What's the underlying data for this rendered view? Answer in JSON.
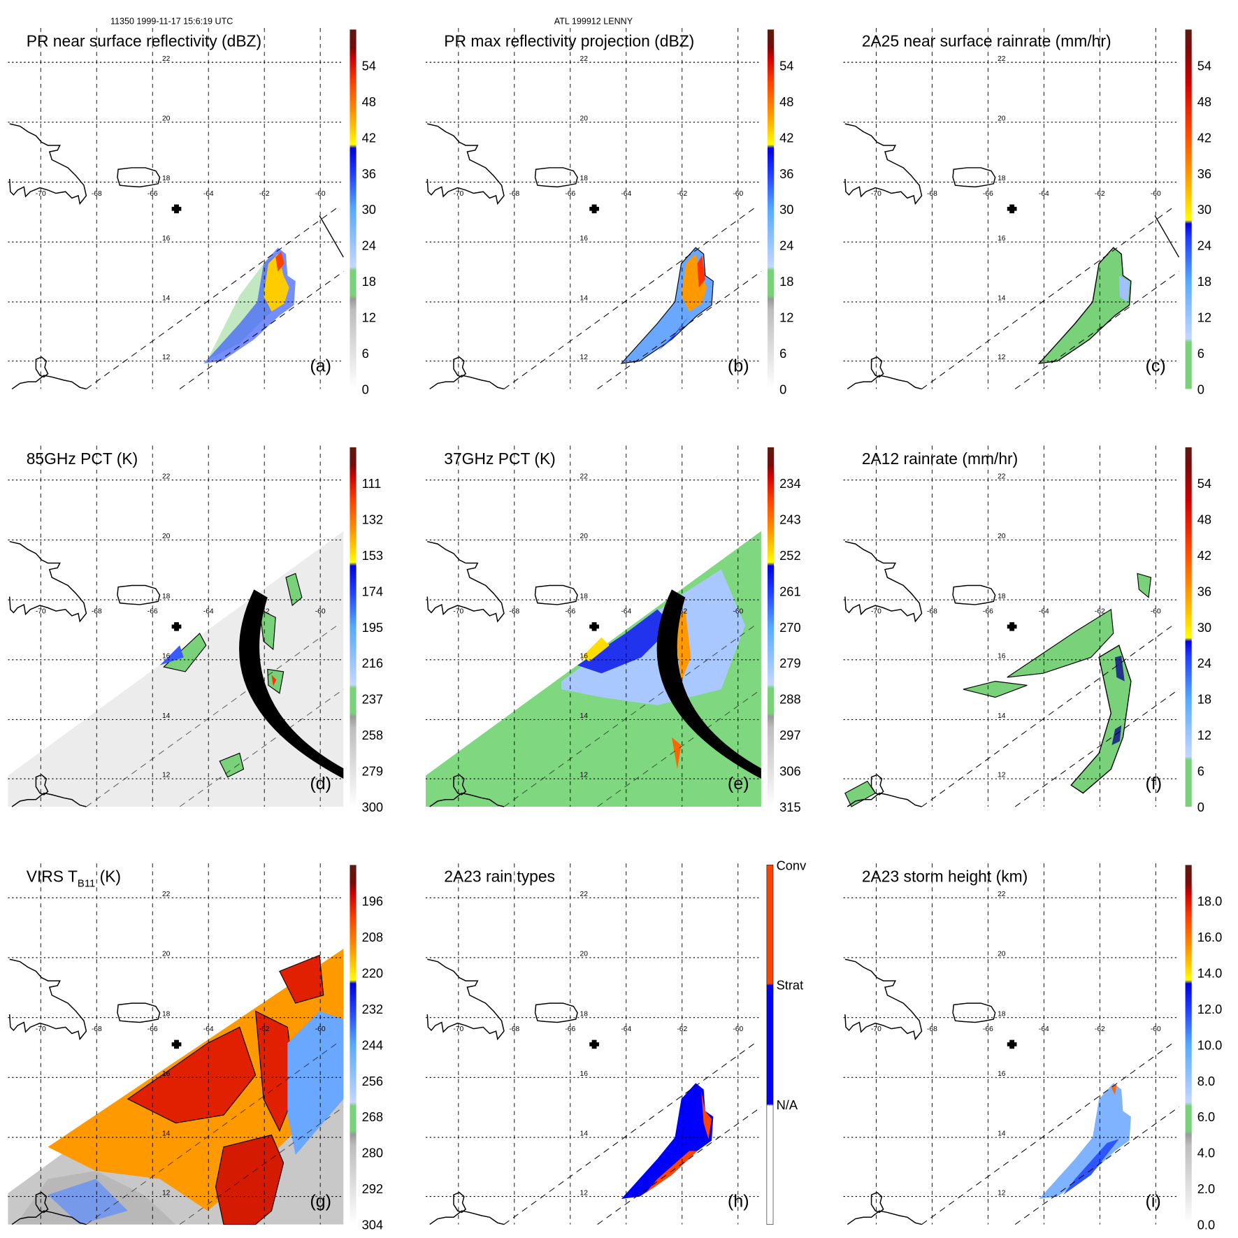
{
  "header": {
    "orbit_time": "11350 1999-11-17 15:6:19 UTC",
    "storm": "ATL 199912 LENNY"
  },
  "chart_data": [
    {
      "type": "heatmap",
      "id": "a",
      "letter": "(a)",
      "title": "PR near surface reflectivity (dBZ)",
      "colorbar_labels": [
        "0",
        "6",
        "12",
        "18",
        "24",
        "30",
        "36",
        "42",
        "48",
        "54"
      ],
      "scale": "refl"
    },
    {
      "type": "heatmap",
      "id": "b",
      "letter": "(b)",
      "title": "PR max reflectivity projection (dBZ)",
      "colorbar_labels": [
        "0",
        "6",
        "12",
        "18",
        "24",
        "30",
        "36",
        "42",
        "48",
        "54"
      ],
      "scale": "refl"
    },
    {
      "type": "heatmap",
      "id": "c",
      "letter": "(c)",
      "title": "2A25 near surface rainrate (mm/hr)",
      "colorbar_labels": [
        "0",
        "6",
        "12",
        "18",
        "24",
        "30",
        "36",
        "42",
        "48",
        "54"
      ],
      "scale": "rain"
    },
    {
      "type": "heatmap",
      "id": "d",
      "letter": "(d)",
      "title": "85GHz PCT (K)",
      "colorbar_labels": [
        "300",
        "279",
        "258",
        "237",
        "216",
        "195",
        "174",
        "153",
        "132",
        "111"
      ],
      "scale": "refl"
    },
    {
      "type": "heatmap",
      "id": "e",
      "letter": "(e)",
      "title": "37GHz PCT (K)",
      "colorbar_labels": [
        "315",
        "306",
        "297",
        "288",
        "279",
        "270",
        "261",
        "252",
        "243",
        "234"
      ],
      "scale": "refl"
    },
    {
      "type": "heatmap",
      "id": "f",
      "letter": "(f)",
      "title": "2A12 rainrate (mm/hr)",
      "colorbar_labels": [
        "0",
        "6",
        "12",
        "18",
        "24",
        "30",
        "36",
        "42",
        "48",
        "54"
      ],
      "scale": "rain"
    },
    {
      "type": "heatmap",
      "id": "g",
      "letter": "(g)",
      "title": "VIRS T",
      "title_sub": "B11",
      "title_suffix": " (K)",
      "colorbar_labels": [
        "304",
        "292",
        "280",
        "268",
        "256",
        "244",
        "232",
        "220",
        "208",
        "196"
      ],
      "scale": "refl"
    },
    {
      "type": "heatmap",
      "id": "h",
      "letter": "(h)",
      "title": "2A23 rain types",
      "colorbar_labels": [
        "N/A",
        "Strat",
        "Conv"
      ],
      "scale": "type"
    },
    {
      "type": "heatmap",
      "id": "i",
      "letter": "(i)",
      "title": "2A23 storm height (km)",
      "colorbar_labels": [
        "0.0",
        "2.0",
        "4.0",
        "6.0",
        "8.0",
        "10.0",
        "12.0",
        "14.0",
        "16.0",
        "18.0"
      ],
      "scale": "refl"
    }
  ],
  "axes": {
    "lon_ticks": [
      "-70",
      "-68",
      "-66",
      "-64",
      "-62",
      "-60"
    ],
    "lat_ticks": [
      "22",
      "20",
      "18",
      "16",
      "14",
      "12"
    ],
    "xlim": [
      -71.2,
      -59.2
    ],
    "ylim": [
      11.0,
      23.1
    ]
  },
  "colorscales": {
    "refl": [
      [
        "#ffffff",
        0
      ],
      [
        "#bdbdbd",
        0.22
      ],
      [
        "#9a9a9a",
        0.25
      ],
      [
        "#79d179",
        0.26
      ],
      [
        "#79d179",
        0.33
      ],
      [
        "#c6d6ff",
        0.34
      ],
      [
        "#55aaff",
        0.5
      ],
      [
        "#1f3cff",
        0.6
      ],
      [
        "#0000e0",
        0.67
      ],
      [
        "#ffff00",
        0.68
      ],
      [
        "#ffcc00",
        0.72
      ],
      [
        "#ff8800",
        0.78
      ],
      [
        "#ff4400",
        0.85
      ],
      [
        "#d00000",
        0.92
      ],
      [
        "#7a0a0a",
        0.95
      ],
      [
        "#5a1a10",
        1.0
      ]
    ],
    "rain": [
      [
        "#79d179",
        0
      ],
      [
        "#79d179",
        0.13
      ],
      [
        "#c6d6ff",
        0.14
      ],
      [
        "#55aaff",
        0.3
      ],
      [
        "#1f3cff",
        0.42
      ],
      [
        "#0000e0",
        0.46
      ],
      [
        "#ffff00",
        0.47
      ],
      [
        "#ffcc00",
        0.53
      ],
      [
        "#ff8800",
        0.62
      ],
      [
        "#ff4400",
        0.72
      ],
      [
        "#d00000",
        0.85
      ],
      [
        "#7a0a0a",
        0.95
      ],
      [
        "#5a1a10",
        1.0
      ]
    ],
    "type": [
      [
        "#ffffff",
        0
      ],
      [
        "#ffffff",
        0.33
      ],
      [
        "#0000ff",
        0.335
      ],
      [
        "#0000ff",
        0.665
      ],
      [
        "#ff4400",
        0.67
      ],
      [
        "#ff4400",
        1.0
      ]
    ]
  }
}
